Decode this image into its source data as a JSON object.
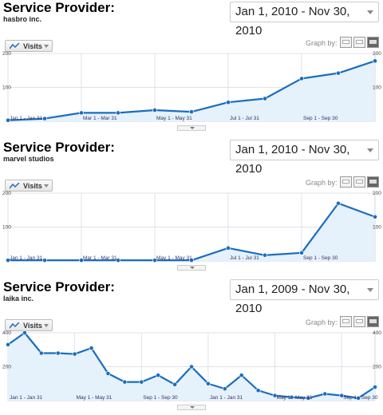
{
  "graph_by_label": "Graph by:",
  "visits_label": "Visits",
  "colors": {
    "line": "#1a6dbf",
    "fill": "#e5f1fb",
    "grid": "#dde3ea"
  },
  "chart_data": [
    {
      "type": "area",
      "title": "Service Provider:",
      "subtitle": "hasbro inc.",
      "date_range": "Jan 1, 2010 - Nov 30, 2010",
      "ylim": [
        0,
        200
      ],
      "y_ticks": [
        100,
        200
      ],
      "x_ticks": [
        "Jan 1 - Jan 31",
        "Mar 1 - Mar 31",
        "May 1 - May 31",
        "Jul 1 - Jul 31",
        "Sep 1 - Sep 30"
      ],
      "x_tick_positions": [
        0,
        2,
        4,
        6,
        8
      ],
      "series": [
        {
          "values": [
            3,
            8,
            25,
            25,
            33,
            28,
            56,
            67,
            126,
            142,
            178
          ]
        }
      ]
    },
    {
      "type": "area",
      "title": "Service Provider:",
      "subtitle": "marvel studios",
      "date_range": "Jan 1, 2010 - Nov 30, 2010",
      "ylim": [
        0,
        200
      ],
      "y_ticks": [
        100,
        200
      ],
      "x_ticks": [
        "Jan 1 - Jan 31",
        "Mar 1 - Mar 31",
        "May 1 - May 31",
        "Jul 1 - Jul 31",
        "Sep 1 - Sep 30"
      ],
      "x_tick_positions": [
        0,
        2,
        4,
        6,
        8
      ],
      "series": [
        {
          "values": [
            2,
            2,
            2,
            2,
            2,
            2,
            38,
            17,
            24,
            170,
            130
          ]
        }
      ]
    },
    {
      "type": "area",
      "title": "Service Provider:",
      "subtitle": "laika inc.",
      "date_range": "Jan 1, 2009 - Nov 30, 2010",
      "ylim": [
        0,
        400
      ],
      "y_ticks": [
        200,
        400
      ],
      "x_ticks": [
        "Jan 1 - Jan 31",
        "May 1 - May 31",
        "Sep 1 - Sep 30",
        "Jan 1 - Jan 31",
        "May 1 - May 31",
        "Sep 1 - Sep 30"
      ],
      "x_tick_positions": [
        0,
        4,
        8,
        12,
        16,
        20
      ],
      "series": [
        {
          "values": [
            330,
            400,
            280,
            280,
            275,
            310,
            160,
            110,
            110,
            150,
            95,
            200,
            100,
            70,
            150,
            60,
            30,
            20,
            15,
            40,
            30,
            15,
            80
          ]
        }
      ]
    }
  ]
}
